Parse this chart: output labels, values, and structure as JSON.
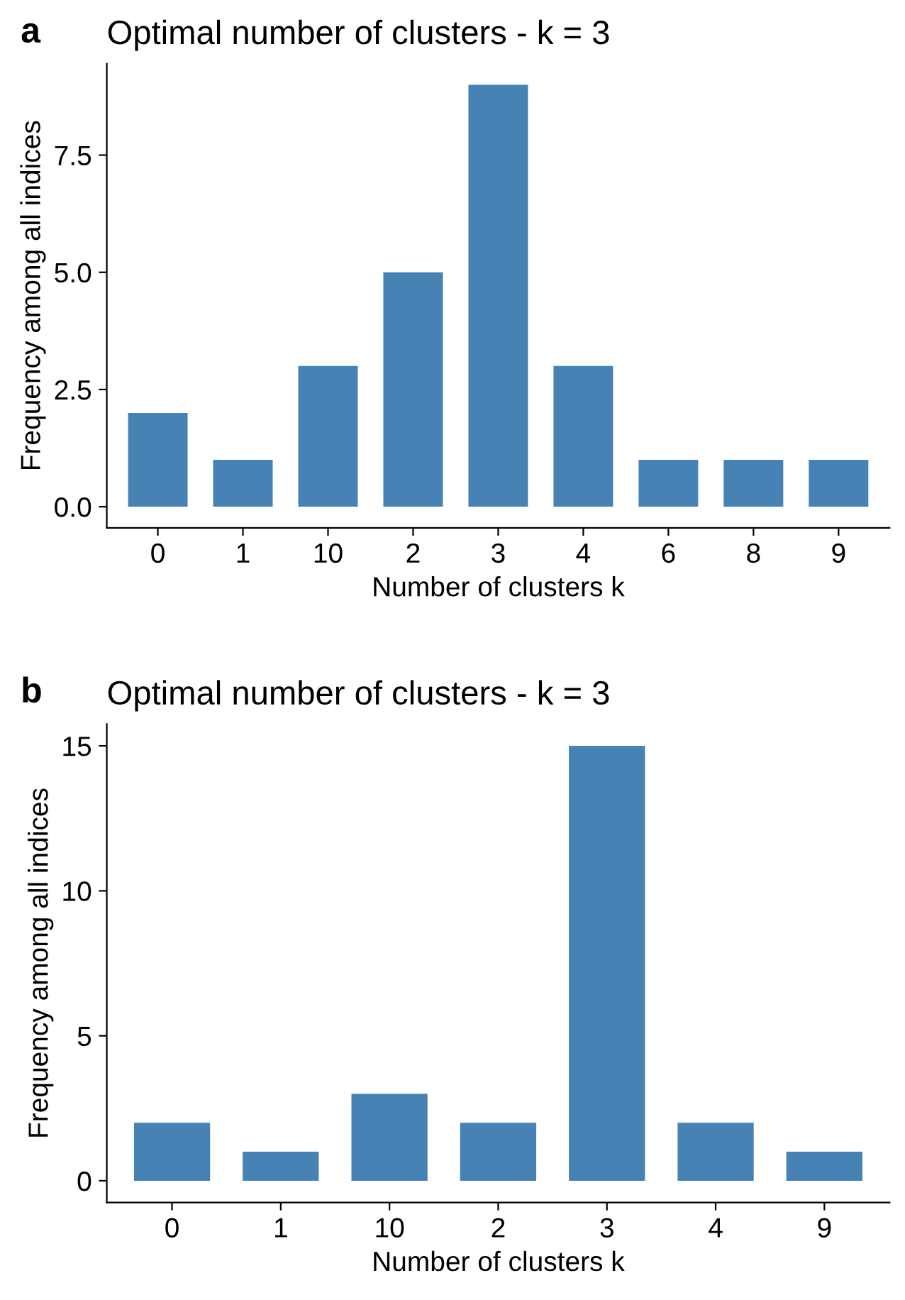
{
  "chart_data": [
    {
      "type": "bar",
      "title": "Optimal number of clusters - k = 3",
      "xlabel": "Number of clusters k",
      "ylabel": "Frequency among all indices",
      "annotations": [
        "a"
      ],
      "categories": [
        "0",
        "1",
        "10",
        "2",
        "3",
        "4",
        "6",
        "8",
        "9"
      ],
      "values": [
        2,
        1,
        3,
        5,
        9,
        3,
        1,
        1,
        1
      ],
      "color": "#4682b4",
      "ylim": [
        -0.45,
        9.45
      ],
      "yticks": [
        {
          "value": 0,
          "label": "0.0"
        },
        {
          "value": 2.5,
          "label": "2.5"
        },
        {
          "value": 5,
          "label": "5.0"
        },
        {
          "value": 7.5,
          "label": "7.5"
        }
      ],
      "grid": false,
      "legend": false
    },
    {
      "type": "bar",
      "title": "Optimal number of clusters - k = 3",
      "xlabel": "Number of clusters k",
      "ylabel": "Frequency among all indices",
      "annotations": [
        "b"
      ],
      "categories": [
        "0",
        "1",
        "10",
        "2",
        "3",
        "4",
        "9"
      ],
      "values": [
        2,
        1,
        3,
        2,
        15,
        2,
        1
      ],
      "color": "#4682b4",
      "ylim": [
        -0.75,
        15.75
      ],
      "yticks": [
        0,
        5,
        10,
        15
      ],
      "grid": false,
      "legend": false
    }
  ]
}
